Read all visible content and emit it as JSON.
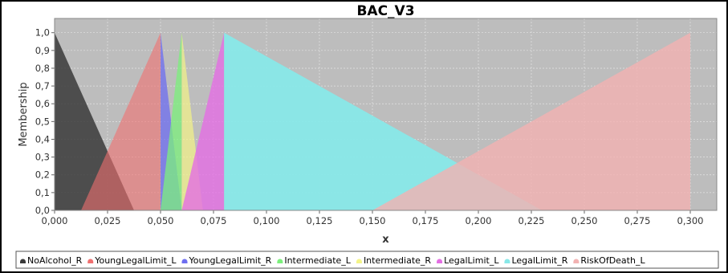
{
  "chart_data": {
    "type": "area",
    "title": "BAC_V3",
    "xlabel": "x",
    "ylabel": "Membership",
    "xlim": [
      0,
      0.3125
    ],
    "ylim": [
      0,
      1.08
    ],
    "x_ticks": [
      "0,000",
      "0,025",
      "0,050",
      "0,075",
      "0,100",
      "0,125",
      "0,150",
      "0,175",
      "0,200",
      "0,225",
      "0,250",
      "0,275",
      "0,300"
    ],
    "y_ticks": [
      "0,0",
      "0,1",
      "0,2",
      "0,3",
      "0,4",
      "0,5",
      "0,6",
      "0,7",
      "0,8",
      "0,9",
      "1,0"
    ],
    "grid": true,
    "legend_position": "bottom",
    "plot_background": "#bdbdbd",
    "series": [
      {
        "name": "NoAlcohol_R",
        "color": "#3a3a3a",
        "opacity": 0.85,
        "points": [
          [
            0,
            1
          ],
          [
            0,
            0
          ],
          [
            0.0375,
            0
          ]
        ]
      },
      {
        "name": "YoungLegalLimit_L",
        "color": "#f07070",
        "opacity": 0.6,
        "points": [
          [
            0.0125,
            0
          ],
          [
            0.05,
            1
          ],
          [
            0.05,
            0
          ]
        ]
      },
      {
        "name": "YoungLegalLimit_R",
        "color": "#6e6ef0",
        "opacity": 0.75,
        "points": [
          [
            0.05,
            0
          ],
          [
            0.05,
            1
          ],
          [
            0.06,
            0
          ]
        ]
      },
      {
        "name": "Intermediate_L",
        "color": "#7cf07c",
        "opacity": 0.75,
        "points": [
          [
            0.05,
            0
          ],
          [
            0.06,
            1
          ],
          [
            0.06,
            0
          ]
        ]
      },
      {
        "name": "Intermediate_R",
        "color": "#f4f488",
        "opacity": 0.7,
        "points": [
          [
            0.06,
            0
          ],
          [
            0.06,
            1
          ],
          [
            0.07,
            0
          ]
        ]
      },
      {
        "name": "LegalLimit_L",
        "color": "#e46ee4",
        "opacity": 0.8,
        "points": [
          [
            0.06,
            0
          ],
          [
            0.08,
            1
          ],
          [
            0.08,
            0
          ]
        ]
      },
      {
        "name": "LegalLimit_R",
        "color": "#88e8e8",
        "opacity": 0.95,
        "points": [
          [
            0.08,
            0
          ],
          [
            0.08,
            1
          ],
          [
            0.23,
            0
          ]
        ]
      },
      {
        "name": "RiskOfDeath_L",
        "color": "#f2b2b2",
        "opacity": 0.8,
        "points": [
          [
            0.15,
            0
          ],
          [
            0.3,
            1
          ],
          [
            0.3,
            0
          ]
        ]
      }
    ]
  }
}
